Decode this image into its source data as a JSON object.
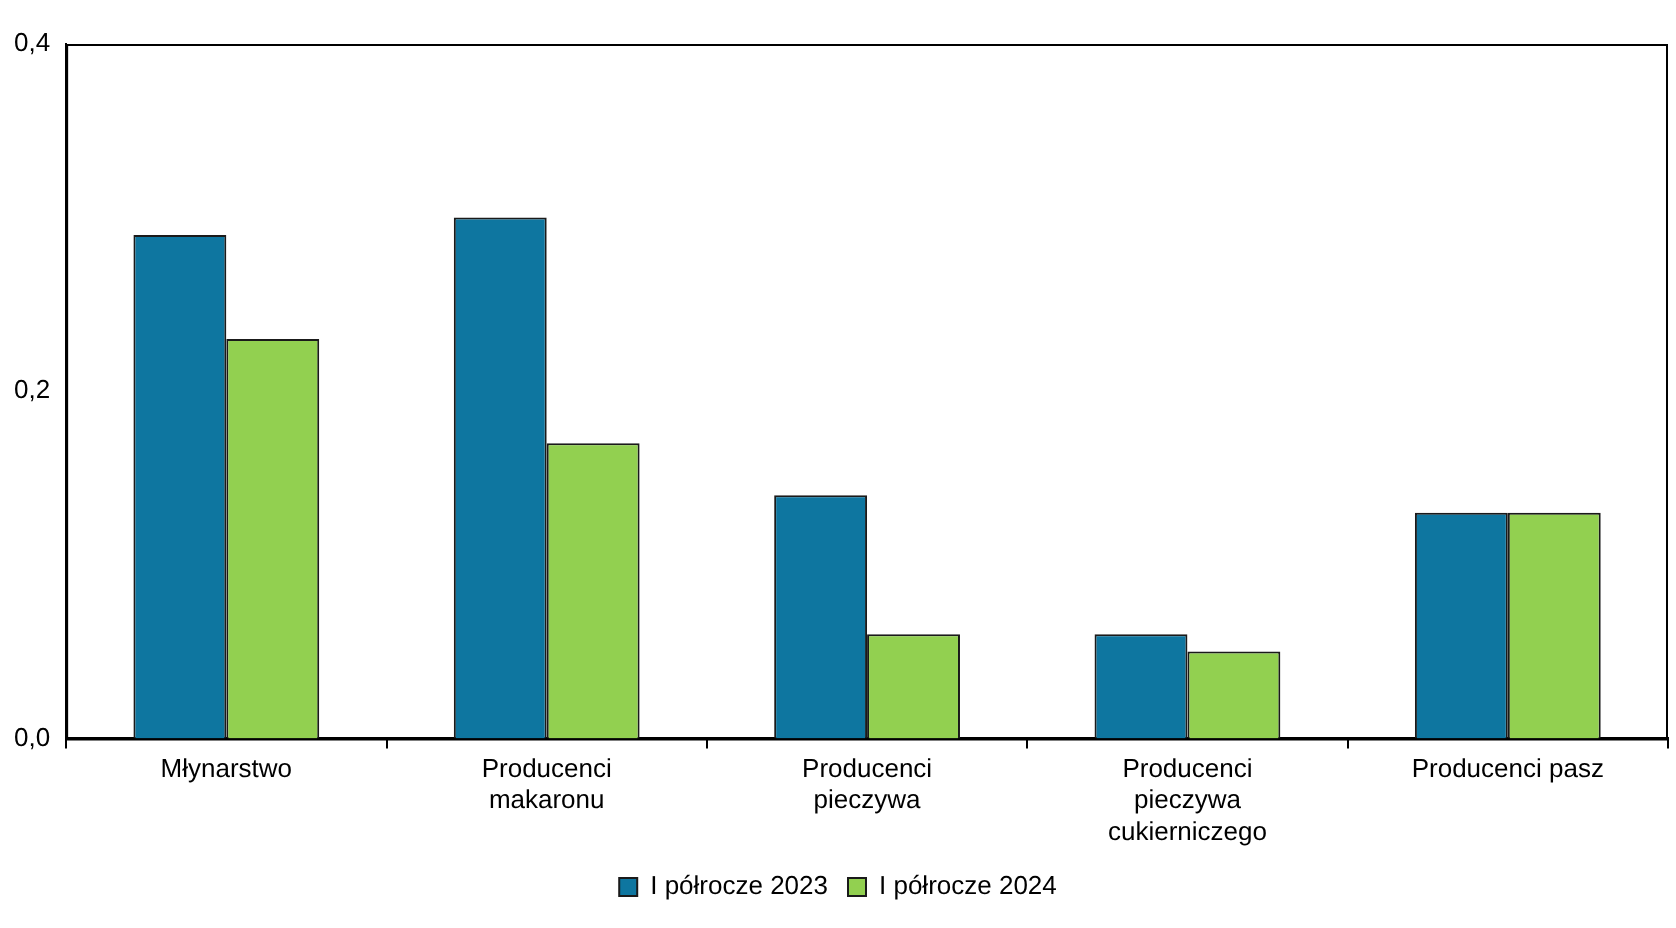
{
  "chart_data": {
    "type": "bar",
    "categories": [
      "Młynarstwo",
      "Producenci\nmakaronu",
      "Producenci\npieczywa",
      "Producenci\npieczywa\ncukierniczego",
      "Producenci pasz"
    ],
    "series": [
      {
        "name": "I półrocze 2023",
        "color": "#0e76a0",
        "values": [
          0.29,
          0.3,
          0.14,
          0.06,
          0.13
        ]
      },
      {
        "name": "I półrocze 2024",
        "color": "#92d050",
        "values": [
          0.23,
          0.17,
          0.06,
          0.05,
          0.13
        ]
      }
    ],
    "ylim": [
      0,
      0.4
    ],
    "yticks": [
      {
        "value": 0,
        "label": "0,0"
      },
      {
        "value": 0.2,
        "label": "0,2"
      },
      {
        "value": 0.4,
        "label": "0,4"
      }
    ],
    "grid": false,
    "legend": "bottom"
  }
}
